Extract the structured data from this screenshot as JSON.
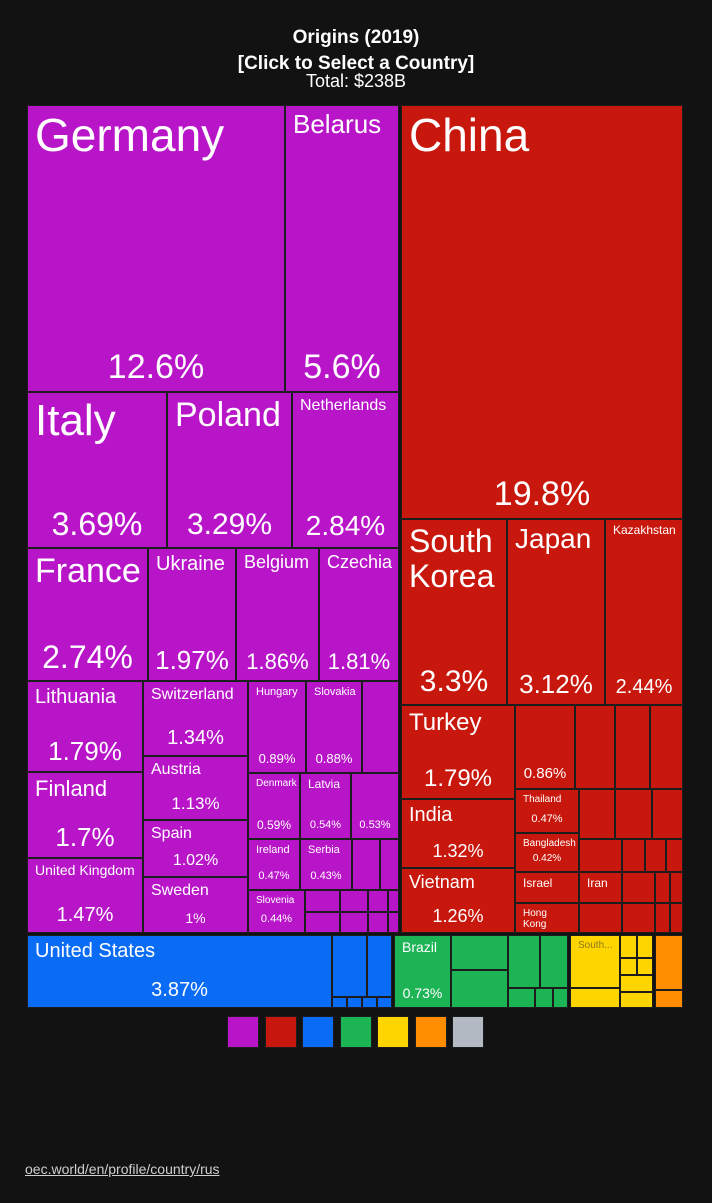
{
  "chart_data": {
    "type": "treemap",
    "title": "Origins (2019)",
    "subtitle": "[Click to Select a Country]",
    "total": "Total: $238B",
    "series": [
      {
        "color": "#b815c9",
        "categories": [
          "Germany",
          "Belarus",
          "Italy",
          "Poland",
          "Netherlands",
          "France",
          "Ukraine",
          "Belgium",
          "Czechia",
          "Lithuania",
          "Finland",
          "United Kingdom",
          "Switzerland",
          "Austria",
          "Spain",
          "Sweden",
          "Hungary",
          "Slovakia",
          "Denmark",
          "Latvia",
          null,
          "Ireland",
          "Serbia",
          "Slovenia"
        ],
        "values": [
          12.6,
          5.6,
          3.69,
          3.29,
          2.84,
          2.74,
          1.97,
          1.86,
          1.81,
          1.79,
          1.7,
          1.47,
          1.34,
          1.13,
          1.02,
          1,
          0.89,
          0.88,
          0.59,
          0.54,
          0.53,
          0.47,
          0.43,
          0.44
        ],
        "value_labels": [
          "12.6%",
          "5.6%",
          "3.69%",
          "3.29%",
          "2.84%",
          "2.74%",
          "1.97%",
          "1.86%",
          "1.81%",
          "1.79%",
          "1.7%",
          "1.47%",
          "1.34%",
          "1.13%",
          "1.02%",
          "1%",
          "0.89%",
          "0.88%",
          "0.59%",
          "0.54%",
          "0.53%",
          "0.47%",
          "0.43%",
          "0.44%"
        ]
      },
      {
        "color": "#c8170d",
        "categories": [
          "China",
          "South Korea",
          "Japan",
          "Kazakhstan",
          "Turkey",
          null,
          "India",
          "Vietnam",
          "Thailand",
          "Bangladesh",
          "Israel",
          "Iran",
          "Hong Kong"
        ],
        "values": [
          19.8,
          3.3,
          3.12,
          2.44,
          1.79,
          0.86,
          1.32,
          1.26,
          0.47,
          0.42,
          0.33,
          0.3,
          0.29
        ],
        "value_labels": [
          "19.8%",
          "3.3%",
          "3.12%",
          "2.44%",
          "1.79%",
          "0.86%",
          "1.32%",
          "1.26%",
          "0.47%",
          "0.42%",
          null,
          null,
          null
        ]
      },
      {
        "color": "#0a6cf5",
        "categories": [
          "United States"
        ],
        "values": [
          3.87
        ],
        "value_labels": [
          "3.87%"
        ]
      },
      {
        "color": "#1db456",
        "categories": [
          "Brazil"
        ],
        "values": [
          0.73
        ],
        "value_labels": [
          "0.73%"
        ]
      },
      {
        "color": "#ffd500",
        "categories": [
          "South..."
        ],
        "values": [
          0.2
        ],
        "value_labels": [
          null
        ]
      },
      {
        "color": "#ff8d00",
        "categories": [],
        "values": [],
        "value_labels": []
      }
    ],
    "legend_colors": [
      "#b815c9",
      "#c8170d",
      "#0a6cf5",
      "#1db456",
      "#ffd500",
      "#ff8d00",
      "#b4bac4"
    ],
    "source": "oec.world/en/profile/country/rus"
  }
}
